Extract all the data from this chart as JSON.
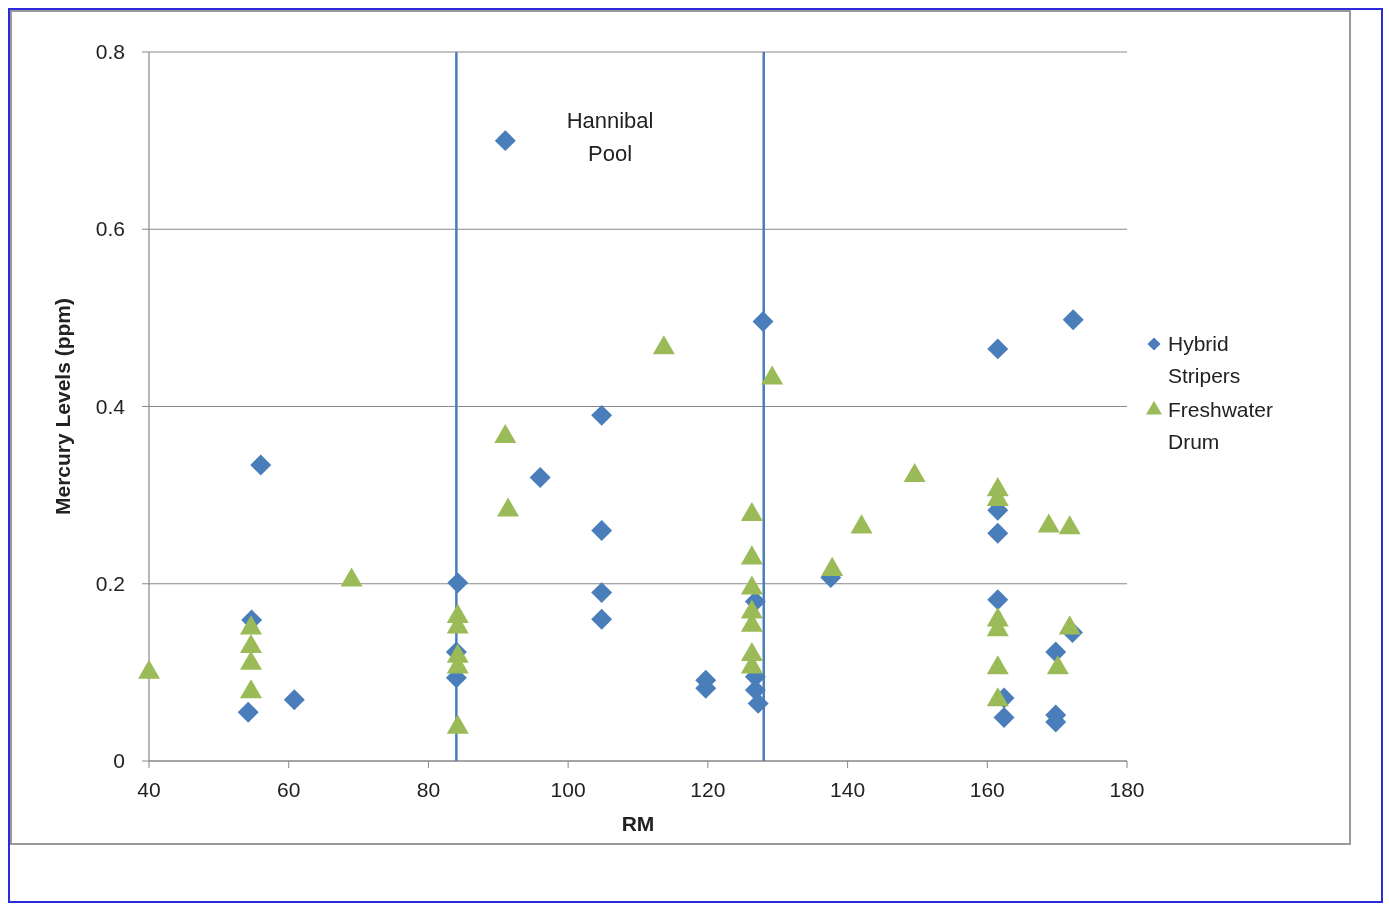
{
  "chart_data": {
    "type": "scatter",
    "xlabel": "RM",
    "ylabel": "Mercury Levels (ppm)",
    "xlim": [
      40,
      180
    ],
    "xticks": [
      40,
      60,
      80,
      100,
      120,
      140,
      160,
      180
    ],
    "ylim": [
      0,
      0.8
    ],
    "yticks": [
      0,
      0.2,
      0.4,
      0.6,
      0.8
    ],
    "grid": "y",
    "legend": "right",
    "ref_lines": [
      {
        "axis": "x",
        "value": 84,
        "color": "#4a7ebb"
      },
      {
        "axis": "x",
        "value": 128,
        "color": "#4a7ebb"
      }
    ],
    "annotations": [
      "Hannibal\nPool"
    ],
    "series": [
      {
        "name": "Hybrid Stripers",
        "color": "#4a7ebb",
        "marker": "diamond",
        "x": [
          54.2,
          54.7,
          56,
          60.8,
          84.2,
          84,
          84,
          91,
          96,
          104.8,
          104.8,
          104.8,
          104.8,
          119.7,
          119.7,
          126.8,
          126.8,
          126.8,
          127.2,
          127.9,
          137.6,
          161.5,
          161.5,
          161.5,
          161.5,
          162.4,
          162.4,
          169.8,
          169.8,
          169.8,
          172.3,
          172.2
        ],
        "values": [
          0.055,
          0.159,
          0.334,
          0.069,
          0.201,
          0.123,
          0.094,
          0.7,
          0.32,
          0.39,
          0.26,
          0.19,
          0.16,
          0.091,
          0.082,
          0.18,
          0.095,
          0.08,
          0.065,
          0.496,
          0.207,
          0.465,
          0.283,
          0.257,
          0.182,
          0.071,
          0.049,
          0.123,
          0.052,
          0.044,
          0.498,
          0.145
        ]
      },
      {
        "name": "Freshwater Drum",
        "color": "#9bbb59",
        "marker": "triangle",
        "x": [
          40,
          54.6,
          54.6,
          54.6,
          54.6,
          69,
          84.2,
          84.2,
          84.2,
          84.2,
          84.2,
          91,
          91.4,
          113.7,
          126.3,
          126.3,
          126.3,
          126.3,
          126.3,
          126.3,
          126.3,
          129.2,
          137.8,
          142,
          149.6,
          161.5,
          161.5,
          161.5,
          161.5,
          161.5,
          161.5,
          168.8,
          171.8,
          171.8,
          170.1
        ],
        "values": [
          0.1,
          0.15,
          0.129,
          0.11,
          0.078,
          0.204,
          0.163,
          0.151,
          0.118,
          0.106,
          0.038,
          0.366,
          0.283,
          0.466,
          0.278,
          0.229,
          0.195,
          0.168,
          0.153,
          0.12,
          0.106,
          0.432,
          0.216,
          0.264,
          0.322,
          0.306,
          0.295,
          0.159,
          0.148,
          0.105,
          0.069,
          0.265,
          0.263,
          0.15,
          0.105
        ]
      }
    ]
  }
}
